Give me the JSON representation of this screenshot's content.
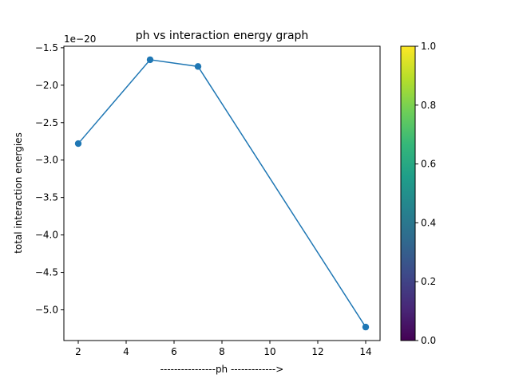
{
  "chart_data": {
    "type": "line",
    "title": "ph vs interaction energy graph",
    "xlabel": "----------------ph ------------->",
    "ylabel": "total interaction energies",
    "offset_text": "1e−20",
    "x": [
      2,
      5,
      7,
      14
    ],
    "series": [
      {
        "values": [
          -2.78,
          -1.66,
          -1.75,
          -5.23
        ]
      }
    ],
    "xlim": [
      1.4,
      14.6
    ],
    "ylim": [
      -5.41,
      -1.48
    ],
    "xticks": [
      2,
      4,
      6,
      8,
      10,
      12,
      14
    ],
    "xtick_labels": [
      "2",
      "4",
      "6",
      "8",
      "10",
      "12",
      "14"
    ],
    "yticks": [
      -1.5,
      -2.0,
      -2.5,
      -3.0,
      -3.5,
      -4.0,
      -4.5,
      -5.0
    ],
    "ytick_labels": [
      "−1.5",
      "−2.0",
      "−2.5",
      "−3.0",
      "−3.5",
      "−4.0",
      "−4.5",
      "−5.0"
    ],
    "grid": false,
    "line_color": "#1f77b4",
    "marker": "circle",
    "colorbar": {
      "colormap": "viridis",
      "range": [
        0.0,
        1.0
      ],
      "ticks": [
        0.0,
        0.2,
        0.4,
        0.6,
        0.8,
        1.0
      ],
      "tick_labels": [
        "0.0",
        "0.2",
        "0.4",
        "0.6",
        "0.8",
        "1.0"
      ],
      "colors": [
        "#440154",
        "#482878",
        "#3e4989",
        "#31688e",
        "#26828e",
        "#1f9e89",
        "#35b779",
        "#6ece58",
        "#b5de2b",
        "#fde725"
      ]
    }
  }
}
